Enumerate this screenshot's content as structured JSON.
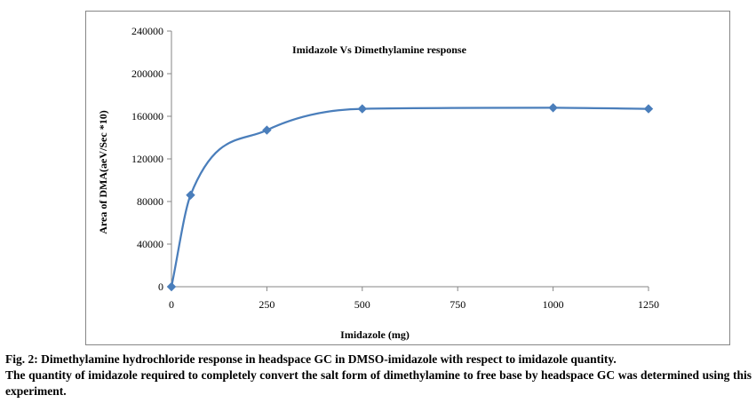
{
  "chart_data": {
    "type": "line",
    "title": "Imidazole Vs Dimethylamine response",
    "xlabel": "Imidazole (mg)",
    "ylabel": "Area of DMA(aeV/Sec *10)",
    "x_ticks": [
      0,
      250,
      500,
      750,
      1000,
      1250
    ],
    "y_ticks": [
      "0",
      "40000",
      "80000",
      "120000",
      "160000",
      "200000",
      "240000"
    ],
    "xlim": [
      0,
      1250
    ],
    "ylim": [
      0,
      240000
    ],
    "grid": false,
    "legend": "none",
    "smoothed": true,
    "marker": "diamond",
    "color": "#4a7ebb",
    "series": [
      {
        "x": [
          0,
          50,
          250,
          500,
          1000,
          1250
        ],
        "y": [
          0,
          86000,
          147000,
          167000,
          168000,
          167000
        ]
      }
    ]
  },
  "caption": {
    "heading": "Fig. 2: Dimethylamine hydrochloride response in headspace GC in DMSO-imidazole with respect to imidazole quantity.",
    "text": "The quantity of imidazole required to completely convert the salt form of dimethylamine to free base by headspace GC was determined using this experiment."
  }
}
